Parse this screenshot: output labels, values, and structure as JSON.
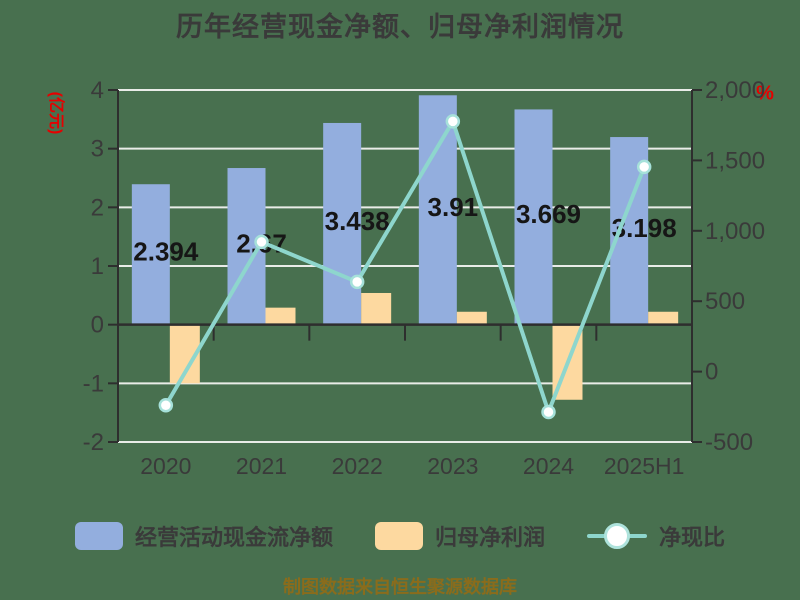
{
  "window": {
    "background_color": "#48704F"
  },
  "header": {
    "title": "历年经营现金净额、归母净利润情况"
  },
  "axes": {
    "left_unit": "(亿元)",
    "right_unit": "%",
    "unit_color": "#E60000",
    "left_ticks": [
      "4",
      "3",
      "2",
      "1",
      "0",
      "-1",
      "-2"
    ],
    "right_ticks": [
      "2,000",
      "1,500",
      "1,000",
      "500",
      "0",
      "-500"
    ]
  },
  "legend": {
    "items": [
      {
        "label": "经营活动现金流净额",
        "type": "bar",
        "color": "#93AEDE"
      },
      {
        "label": "归母净利润",
        "type": "bar",
        "color": "#FDD9A0"
      },
      {
        "label": "净现比",
        "type": "line",
        "color": "#8ED6CD"
      }
    ]
  },
  "footer": {
    "source_note": "制图数据来自恒生聚源数据库"
  },
  "chart_data": {
    "type": "bar",
    "subtype": "bar-line-combo",
    "title": "历年经营现金净额、归母净利润情况",
    "categories": [
      "2020",
      "2021",
      "2022",
      "2023",
      "2024",
      "2025H1"
    ],
    "series": [
      {
        "name": "经营活动现金流净额",
        "type": "bar",
        "axis": "left",
        "color": "#93AEDE",
        "values": [
          2.394,
          2.67,
          3.438,
          3.91,
          3.669,
          3.198
        ],
        "data_labels": [
          "2.394",
          "2.67",
          "3.438",
          "3.91",
          "3.669",
          "3.198"
        ]
      },
      {
        "name": "归母净利润",
        "type": "bar",
        "axis": "left",
        "color": "#FDD9A0",
        "values": [
          -1.0,
          0.29,
          0.54,
          0.22,
          -1.28,
          0.22
        ]
      },
      {
        "name": "净现比",
        "type": "line",
        "axis": "right",
        "color": "#8ED6CD",
        "marker_fill": "#FFFFFF",
        "marker_ring": "#A6E1DA",
        "values": [
          -239,
          921,
          637,
          1777,
          -287,
          1454
        ]
      }
    ],
    "left_axis": {
      "label": "(亿元)",
      "min": -2,
      "max": 4,
      "tick_step": 1
    },
    "right_axis": {
      "label": "%",
      "min": -500,
      "max": 2000,
      "tick_step": 500
    },
    "grid": true,
    "legend_position": "bottom",
    "grid_color": "#E9ECE8",
    "axis_color": "#2E2E2E",
    "label_color": "#161616",
    "tick_label_color": "#3A3A3A"
  }
}
